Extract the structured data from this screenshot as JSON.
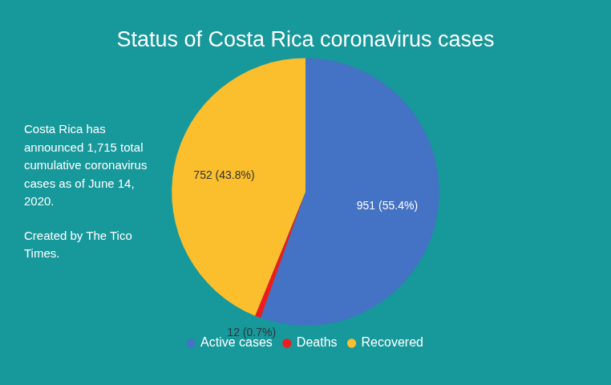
{
  "chart_data": {
    "type": "pie",
    "title": "Status of Costa Rica coronavirus cases",
    "categories": [
      "Active cases",
      "Deaths",
      "Recovered"
    ],
    "values": [
      951,
      12,
      752
    ],
    "value_labels": [
      "951 (55.4%)",
      "12 (0.7%)",
      "752 (43.8%)"
    ],
    "colors": [
      "#4472c4",
      "#ee1c1c",
      "#fbbf2d"
    ],
    "data_labels": true,
    "legend": "bottom",
    "annotations": [
      "Costa Rica has announced 1,715 total cumulative coronavirus cases as of June 14, 2020.",
      "Created by The Tico Times."
    ]
  }
}
